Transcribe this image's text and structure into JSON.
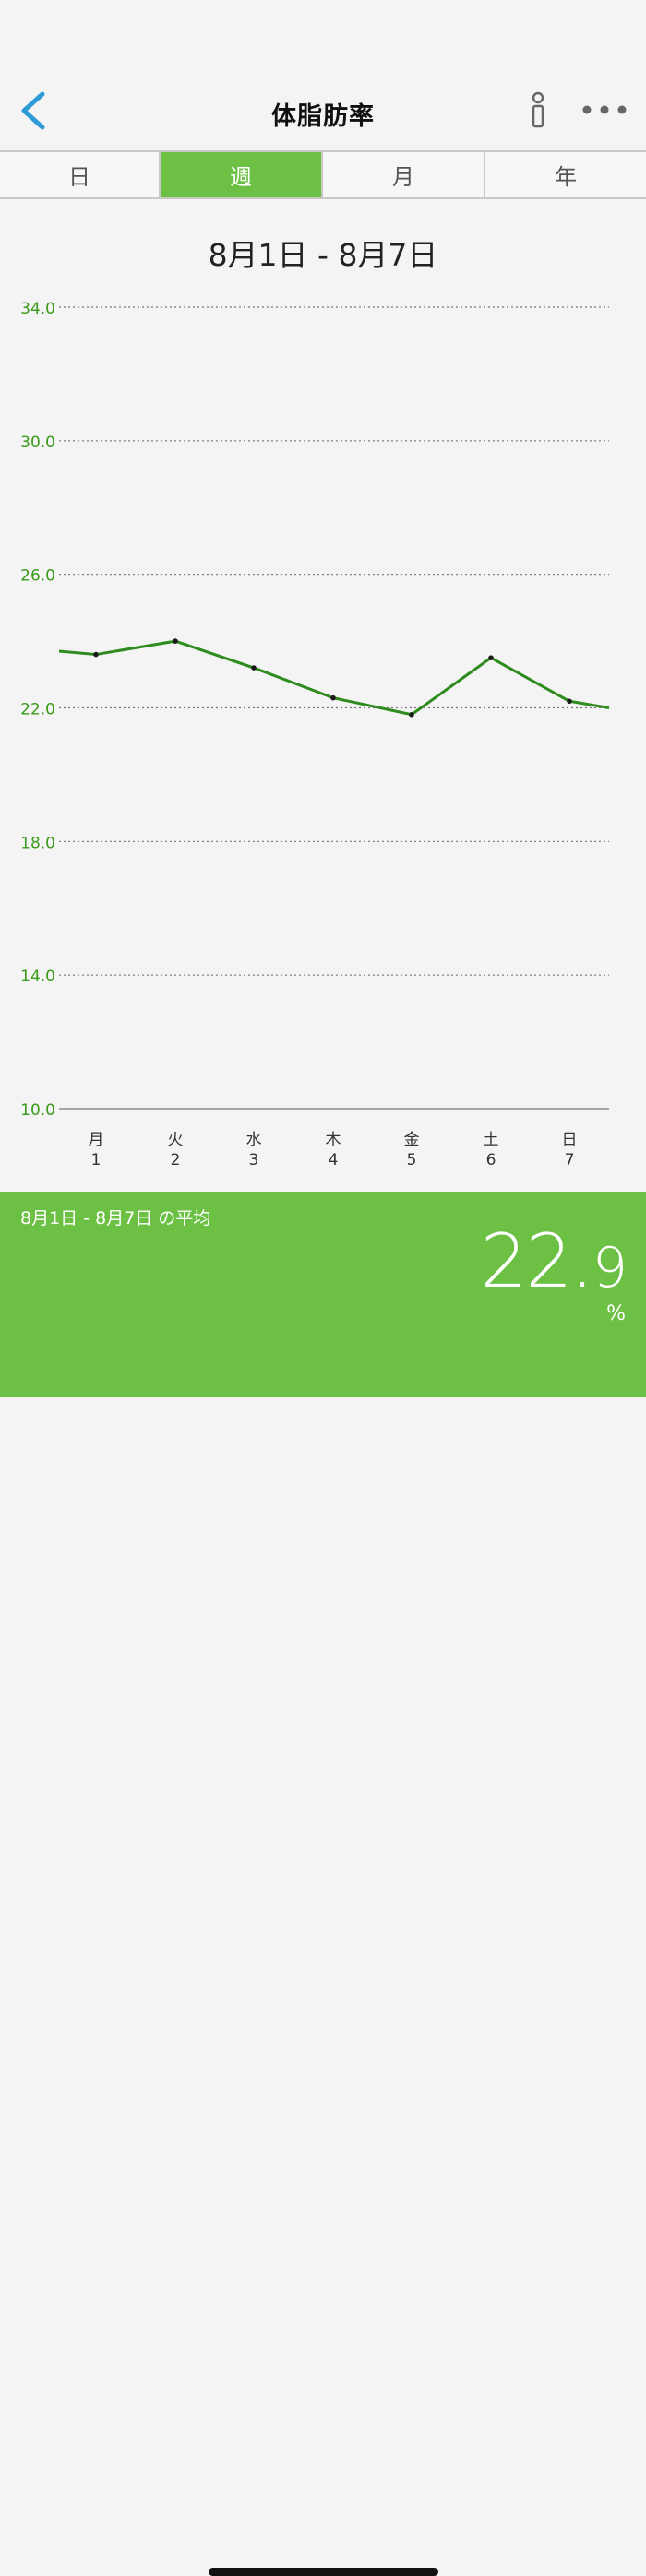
{
  "header": {
    "title": "体脂肪率"
  },
  "tabs": [
    {
      "label": "日",
      "active": false
    },
    {
      "label": "週",
      "active": true
    },
    {
      "label": "月",
      "active": false
    },
    {
      "label": "年",
      "active": false
    }
  ],
  "date_range": "8月1日 - 8月7日",
  "colors": {
    "accent": "#6cc044",
    "line": "#2e8b1e",
    "back": "#2e9bd6"
  },
  "chart_data": {
    "type": "line",
    "ylim": [
      10.0,
      34.0
    ],
    "yticks": [
      "34.0",
      "30.0",
      "26.0",
      "22.0",
      "18.0",
      "14.0",
      "10.0"
    ],
    "grid": true,
    "categories": [
      {
        "weekday": "月",
        "day": "1"
      },
      {
        "weekday": "火",
        "day": "2"
      },
      {
        "weekday": "水",
        "day": "3"
      },
      {
        "weekday": "木",
        "day": "4"
      },
      {
        "weekday": "金",
        "day": "5"
      },
      {
        "weekday": "土",
        "day": "6"
      },
      {
        "weekday": "日",
        "day": "7"
      }
    ],
    "values": [
      23.6,
      24.0,
      23.2,
      22.3,
      21.8,
      23.5,
      22.2
    ],
    "lead_in_value": 23.7,
    "lead_out_value": 22.0
  },
  "summary": {
    "label": "8月1日 - 8月7日 の平均",
    "value_int": "22.",
    "value_dec": "9",
    "unit": "%"
  }
}
